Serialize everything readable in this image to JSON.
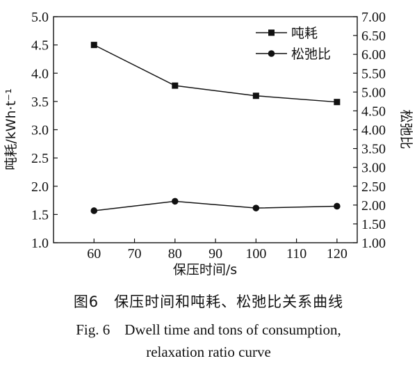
{
  "chart_data": {
    "type": "line",
    "x": [
      60,
      80,
      100,
      120
    ],
    "xlabel": "保压时间/s",
    "xlim": [
      50,
      125
    ],
    "xticks": [
      60,
      70,
      80,
      90,
      100,
      110,
      120
    ],
    "ylabel_left": "吨耗/kWh·t⁻¹",
    "ylim_left": [
      1.0,
      5.0
    ],
    "yticks_left": [
      "1.0",
      "1.5",
      "2.0",
      "2.5",
      "3.0",
      "3.5",
      "4.0",
      "4.5",
      "5.0"
    ],
    "ylabel_right": "松弛比",
    "ylim_right": [
      1.0,
      7.0
    ],
    "yticks_right": [
      "1.00",
      "1.50",
      "2.00",
      "2.50",
      "3.00",
      "3.50",
      "4.00",
      "4.50",
      "5.00",
      "5.50",
      "6.00",
      "6.50",
      "7.00"
    ],
    "series": [
      {
        "name": "吨耗",
        "axis": "left",
        "marker": "square",
        "values": [
          4.5,
          3.78,
          3.6,
          3.49
        ]
      },
      {
        "name": "松弛比",
        "axis": "right",
        "marker": "circle",
        "values": [
          1.85,
          2.1,
          1.92,
          1.97
        ]
      }
    ],
    "grid": false,
    "legend_position": "top-right"
  },
  "caption": {
    "cn": "图6　保压时间和吨耗、松弛比关系曲线",
    "en_line1": "Fig. 6　Dwell time and tons of consumption,",
    "en_line2": "relaxation ratio curve"
  }
}
